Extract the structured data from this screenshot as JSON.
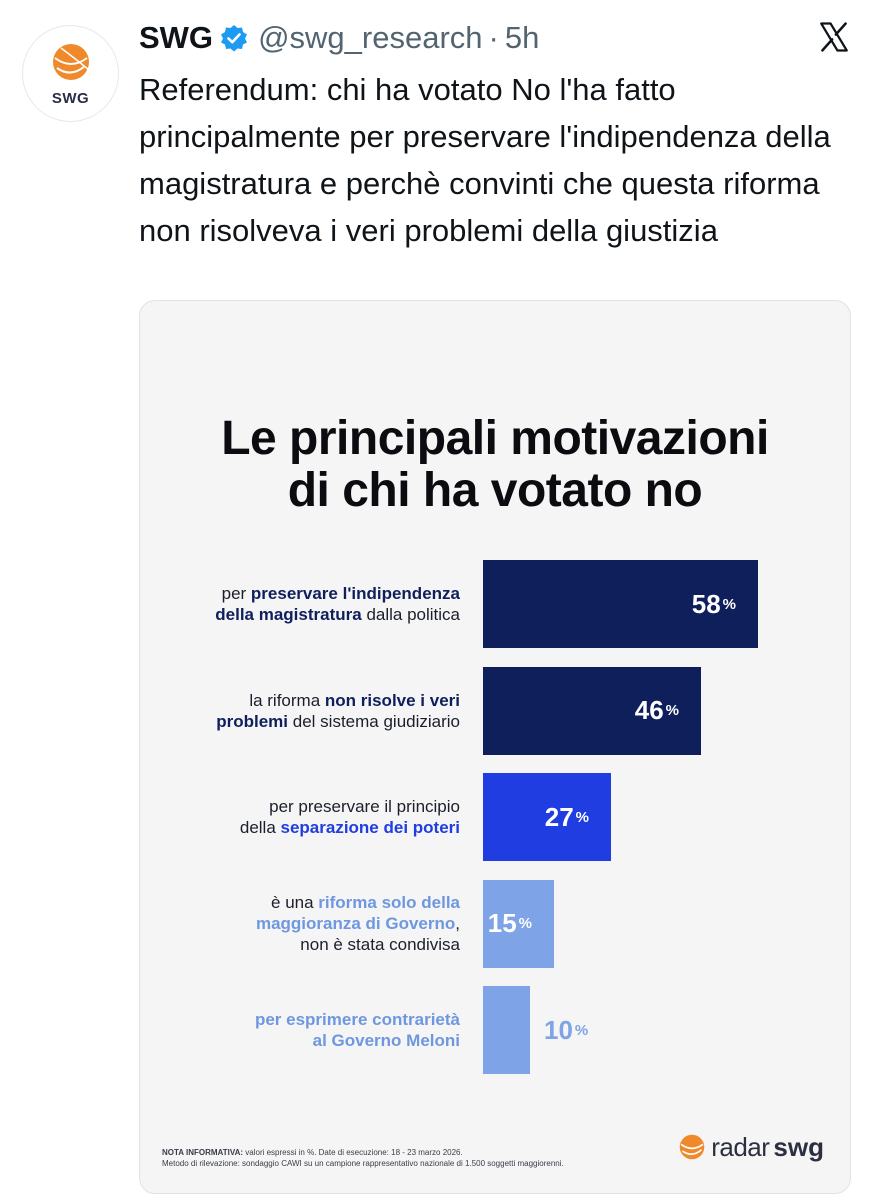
{
  "tweet": {
    "author_name": "SWG",
    "handle": "@swg_research",
    "separator": "·",
    "time": "5h",
    "avatar_text": "SWG",
    "text": "Referendum: chi ha votato No l'ha fatto principalmente per preservare l'indipendenza della magistratura e perchè convinti che questa riforma non risolveva i veri problemi della giustizia",
    "icons": [
      "verified-badge-icon",
      "x-logo-icon",
      "swg-globe-icon"
    ]
  },
  "card": {
    "headline_line1": "Le principali motivazioni",
    "headline_line2": "di chi ha votato no",
    "note_label": "NOTA INFORMATIVA:",
    "note_line1": "valori espressi in %. Date di esecuzione: 18 - 23 marzo 2026.",
    "note_line2": "Metodo di rilevazione: sondaggio CAWI su un campione rappresentativo nazionale di 1.500 soggetti maggiorenni.",
    "logo_radar": "radar",
    "logo_swg": "swg"
  },
  "chart_data": {
    "type": "bar",
    "orientation": "horizontal",
    "title": "Le principali motivazioni di chi ha votato no",
    "unit": "%",
    "categories": [
      "per preservare l'indipendenza della magistratura dalla politica",
      "la riforma non risolve i veri problemi del sistema giudiziario",
      "per preservare il principio della separazione dei poteri",
      "è una riforma solo della maggioranza di Governo, non è stata condivisa",
      "per esprimere contrarietà al Governo Meloni"
    ],
    "values": [
      58,
      46,
      27,
      15,
      10
    ],
    "value_labels": [
      "58",
      "46",
      "27",
      "15",
      "10"
    ],
    "percent_sign": "%",
    "bar_colors": [
      "#0f1f5c",
      "#0f1f5c",
      "#1f3de0",
      "#7ea3e6",
      "#7ea3e6"
    ],
    "value_colors": [
      "#ffffff",
      "#ffffff",
      "#ffffff",
      "#ffffff",
      "#7ea3e6"
    ],
    "label_parts": [
      [
        {
          "t": "per ",
          "h": false
        },
        {
          "t": "preservare l'indipendenza",
          "h": true
        },
        {
          "br": true
        },
        {
          "t": "della magistratura",
          "h": true
        },
        {
          "t": " dalla politica",
          "h": false
        }
      ],
      [
        {
          "t": "la riforma ",
          "h": false
        },
        {
          "t": "non risolve i veri",
          "h": true
        },
        {
          "br": true
        },
        {
          "t": "problemi",
          "h": true
        },
        {
          "t": " del sistema giudiziario",
          "h": false
        }
      ],
      [
        {
          "t": "per preservare il principio",
          "h": false
        },
        {
          "br": true
        },
        {
          "t": "della ",
          "h": false
        },
        {
          "t": "separazione dei poteri",
          "h": true
        }
      ],
      [
        {
          "t": "è una ",
          "h": false
        },
        {
          "t": "riforma solo della",
          "h": true
        },
        {
          "br": true
        },
        {
          "t": "maggioranza di Governo",
          "h": true
        },
        {
          "t": ",",
          "h": false
        },
        {
          "br": true
        },
        {
          "t": "non è stata condivisa",
          "h": false
        }
      ],
      [
        {
          "t": "per esprimere contrarietà",
          "h": true
        },
        {
          "br": true
        },
        {
          "t": "al Governo Meloni",
          "h": true
        }
      ]
    ],
    "xlim": [
      0,
      58
    ]
  }
}
